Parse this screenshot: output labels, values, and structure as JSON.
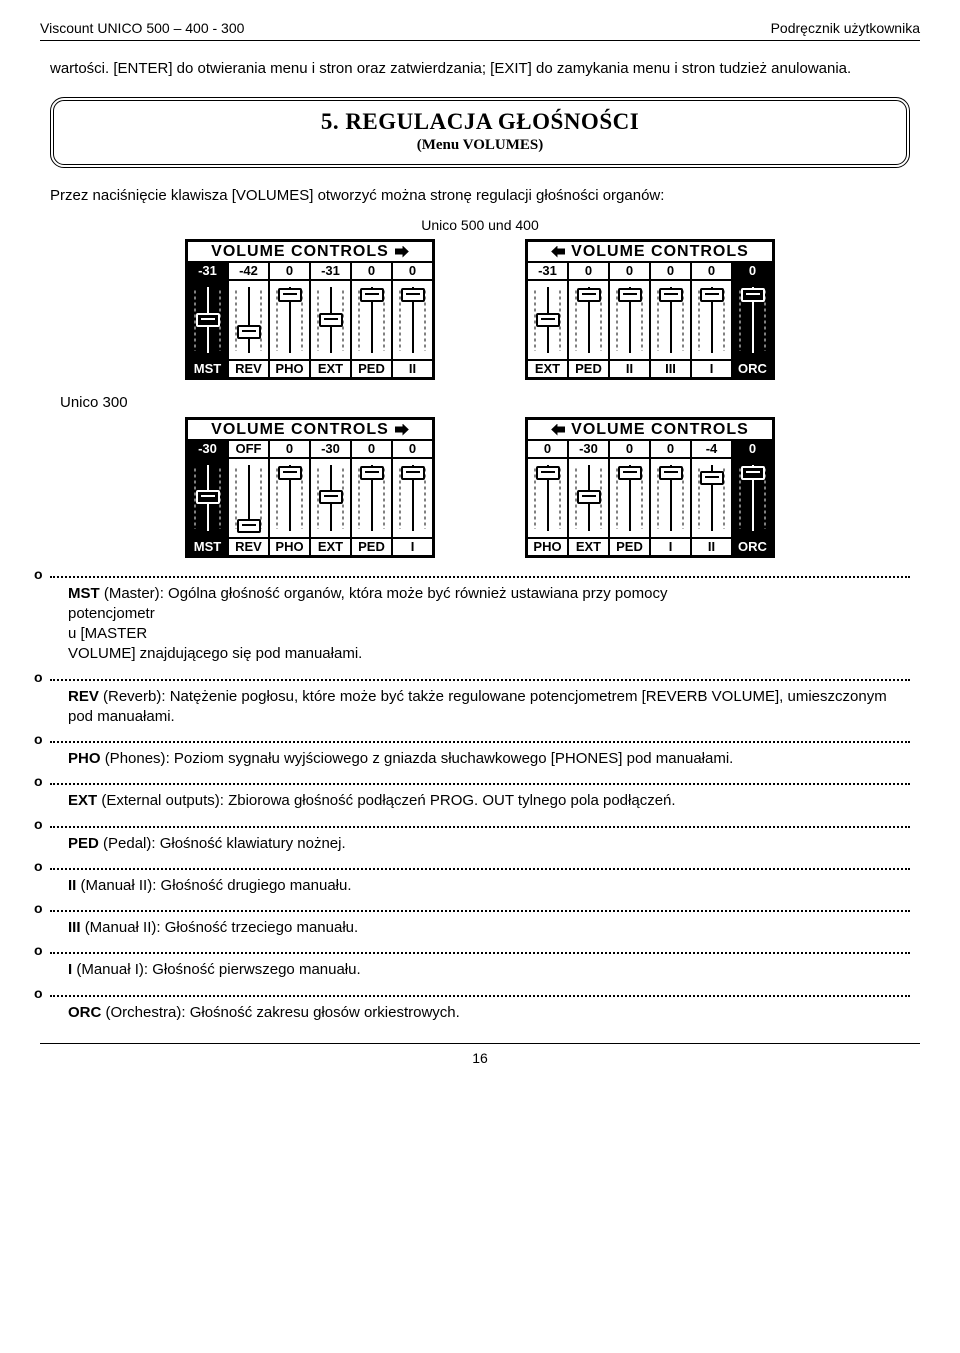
{
  "header": {
    "left": "Viscount  UNICO 500 – 400 - 300",
    "right": "Podręcznik  użytkownika"
  },
  "intro": "wartości. [ENTER] do otwierania menu i stron oraz zatwierdzania; [EXIT] do zamykania menu i stron tudzież anulowania.",
  "section": {
    "title": "5. REGULACJA GŁOŚNOŚCI",
    "sub": "(Menu VOLUMES)"
  },
  "lead": "Przez naciśnięcie klawisza [VOLUMES] otworzyć można stronę regulacji głośności organów:",
  "caption1": "Unico 500 und 400",
  "caption2": "Unico 300",
  "lcd_title": "VOLUME CONTROLS",
  "panel_colors": {
    "lcd_border": "#000000",
    "inverse_bg": "#000000",
    "inverse_fg": "#ffffff"
  },
  "panel1": {
    "values": [
      "-31",
      "-42",
      "0",
      "-31",
      "0",
      "0"
    ],
    "labels": [
      "MST",
      "REV",
      "PHO",
      "EXT",
      "PED",
      "II"
    ],
    "inverse": [
      true,
      false,
      false,
      false,
      false,
      false
    ],
    "slider_pos": [
      0.48,
      0.68,
      0.06,
      0.48,
      0.06,
      0.06
    ],
    "arrow": "right"
  },
  "panel2": {
    "values": [
      "-31",
      "0",
      "0",
      "0",
      "0",
      "0"
    ],
    "labels": [
      "EXT",
      "PED",
      "II",
      "III",
      "I",
      "ORC"
    ],
    "inverse": [
      false,
      false,
      false,
      false,
      false,
      true
    ],
    "slider_pos": [
      0.48,
      0.06,
      0.06,
      0.06,
      0.06,
      0.06
    ],
    "arrow": "left"
  },
  "panel3": {
    "values": [
      "-30",
      "OFF",
      "0",
      "-30",
      "0",
      "0"
    ],
    "labels": [
      "MST",
      "REV",
      "PHO",
      "EXT",
      "PED",
      "I"
    ],
    "inverse": [
      true,
      false,
      false,
      false,
      false,
      false
    ],
    "slider_pos": [
      0.46,
      0.94,
      0.06,
      0.46,
      0.06,
      0.06
    ],
    "arrow": "right"
  },
  "panel4": {
    "values": [
      "0",
      "-30",
      "0",
      "0",
      "-4",
      "0"
    ],
    "labels": [
      "PHO",
      "EXT",
      "PED",
      "I",
      "II",
      "ORC"
    ],
    "inverse": [
      false,
      false,
      false,
      false,
      false,
      true
    ],
    "slider_pos": [
      0.06,
      0.46,
      0.06,
      0.06,
      0.14,
      0.06
    ],
    "arrow": "left"
  },
  "defs": [
    {
      "term": "MST",
      "paren": "(Master)",
      "text": ": Ogólna głośność organów, która może być również ustawiana przy pomocy\npotencjometr\nu [MASTER\nVOLUME] znajdującego się pod manuałami."
    },
    {
      "term": "REV",
      "paren": "(Reverb)",
      "text": ": Natężenie pogłosu, które może być także regulowane potencjometrem [REVERB VOLUME], umieszczonym pod manuałami."
    },
    {
      "term": "PHO",
      "paren": "(Phones)",
      "text": ": Poziom sygnału wyjściowego z gniazda słuchawkowego [PHONES] pod manuałami."
    },
    {
      "term": "EXT",
      "paren": "(External outputs)",
      "text": ": Zbiorowa głośność podłączeń PROG. OUT tylnego pola podłączeń."
    },
    {
      "term": "PED",
      "paren": "(Pedal)",
      "text": ": Głośność klawiatury nożnej."
    },
    {
      "term": "II",
      "paren": "(Manuał II)",
      "text": ": Głośność drugiego manuału."
    },
    {
      "term": "III",
      "paren": "(Manuał II)",
      "text": ": Głośność trzeciego manuału."
    },
    {
      "term": "I",
      "paren": "(Manuał I)",
      "text": ": Głośność pierwszego manuału."
    },
    {
      "term": "ORC",
      "paren": "(Orchestra)",
      "text": ": Głośność zakresu głosów orkiestrowych."
    }
  ],
  "page_number": "16"
}
